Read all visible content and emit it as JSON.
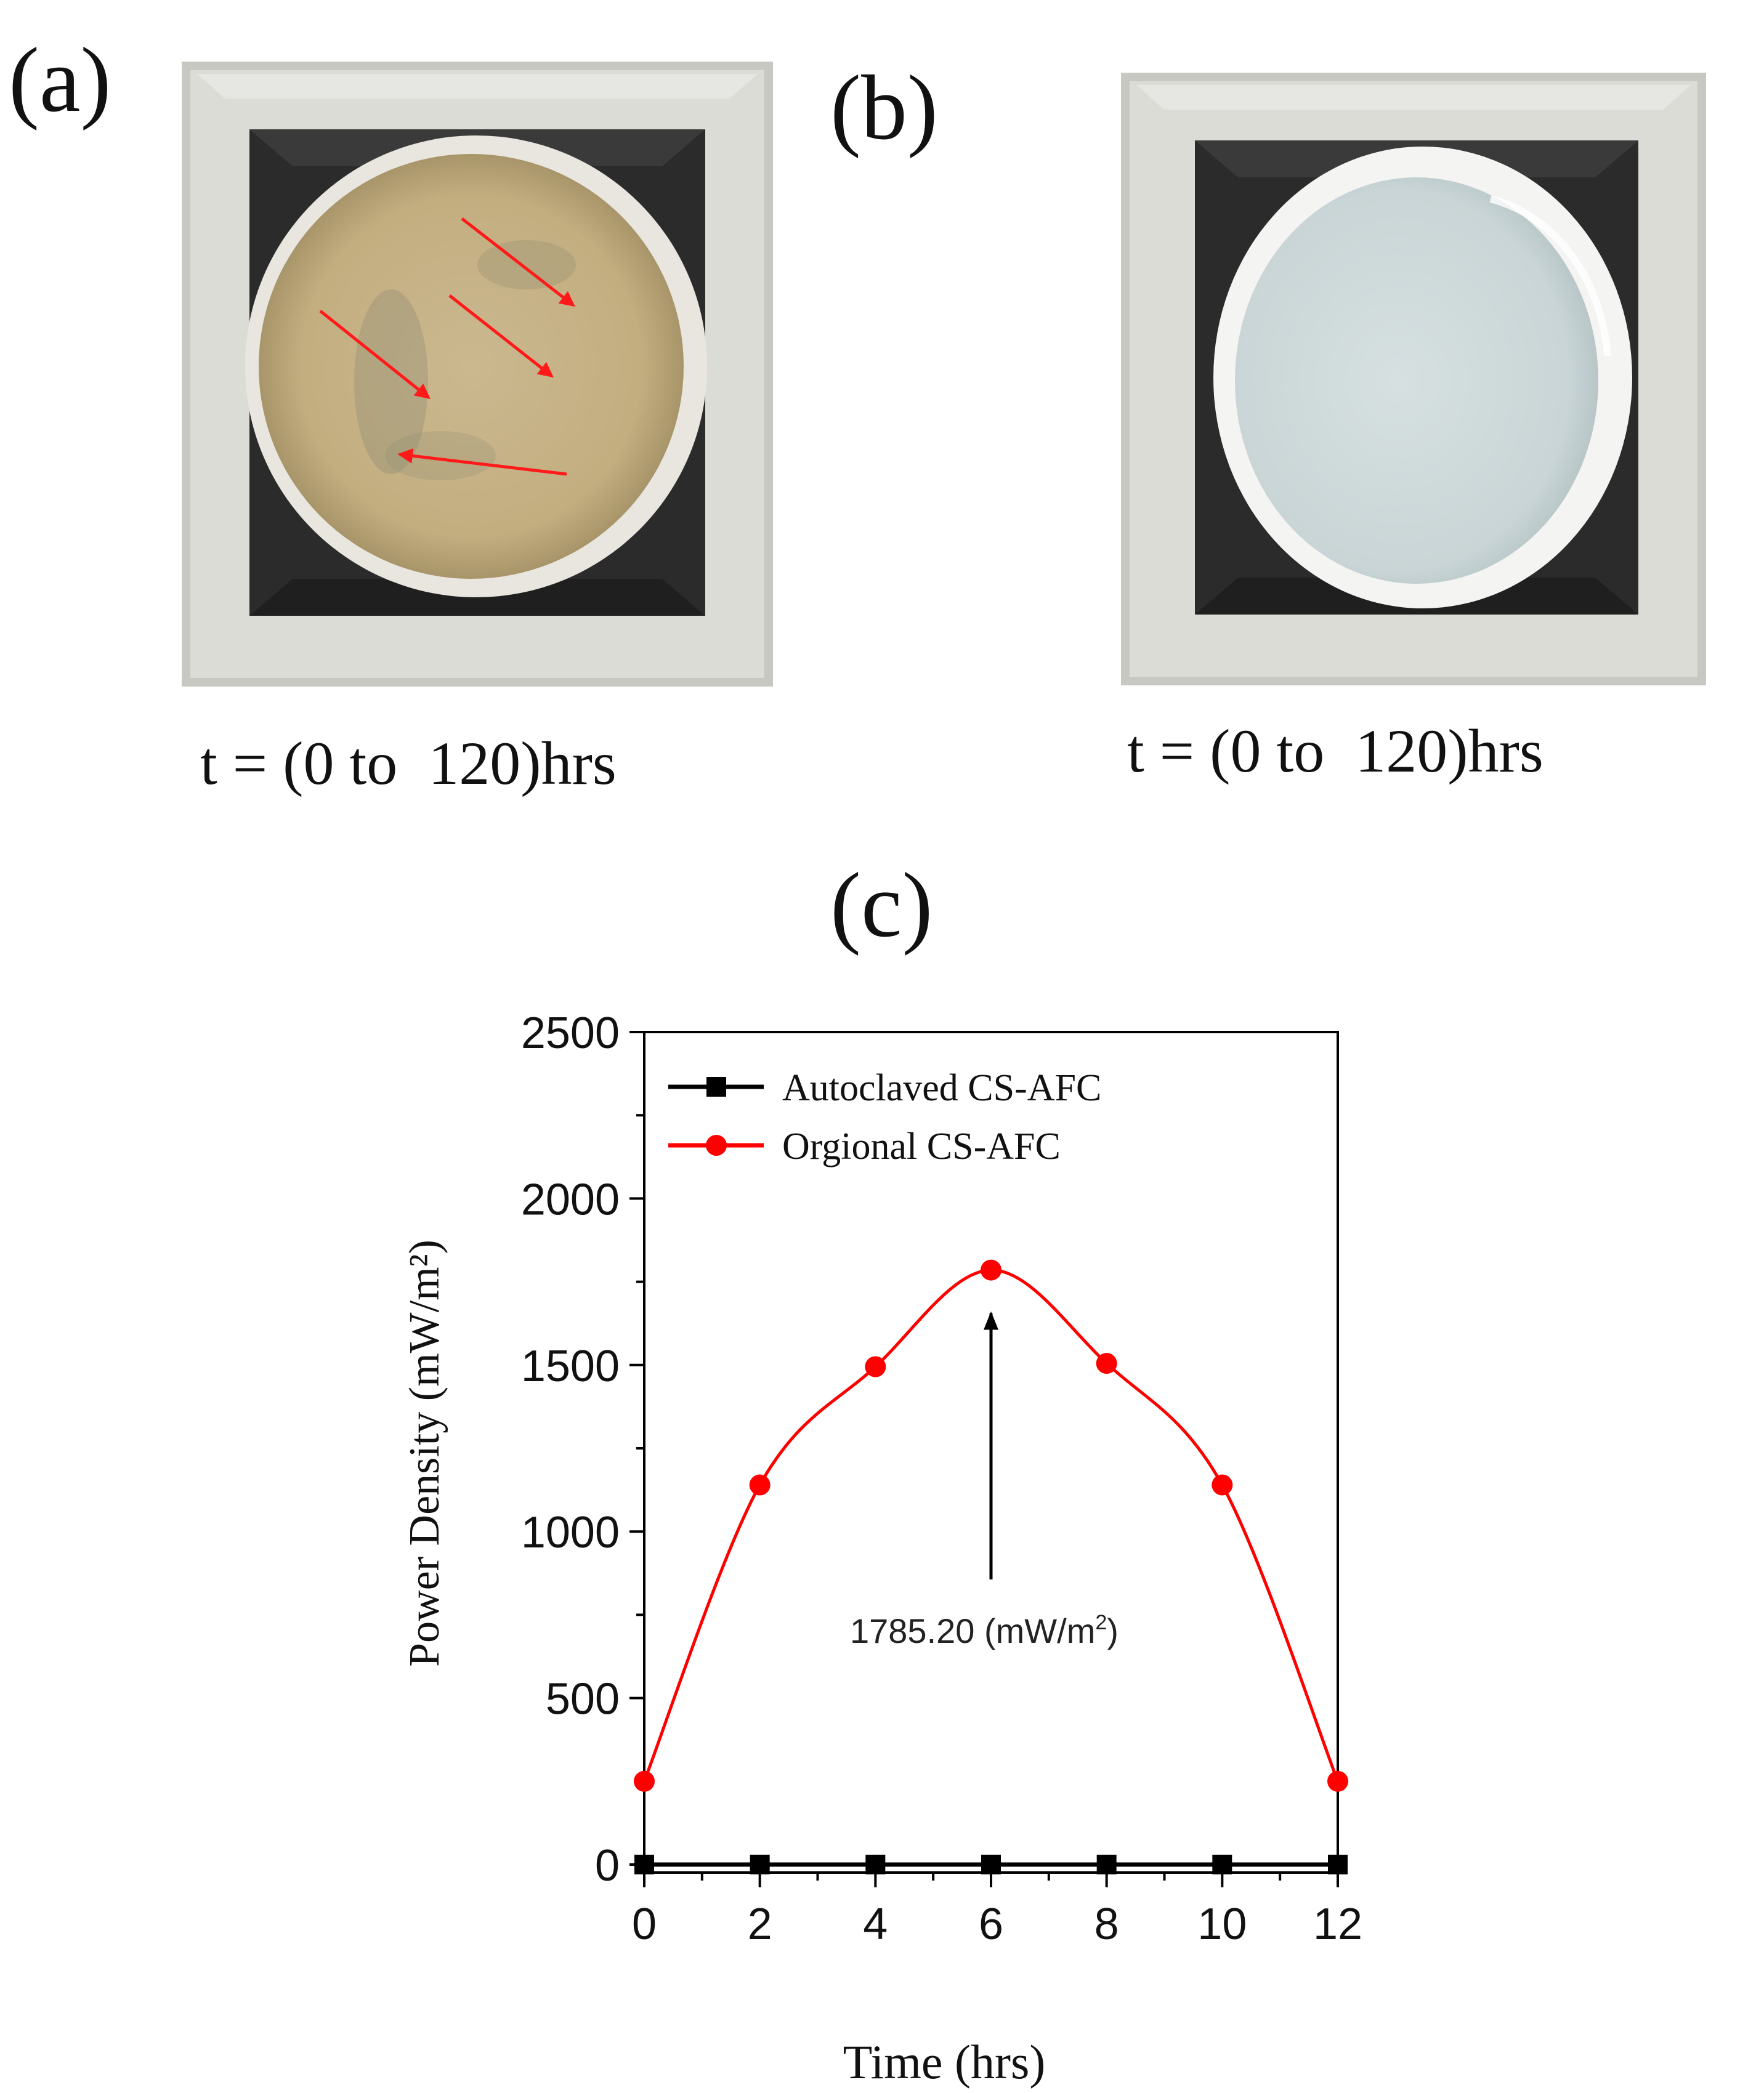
{
  "panels": {
    "a": {
      "label": "(a)",
      "caption": "t = (0 to  120)hrs"
    },
    "b": {
      "label": "(b)",
      "caption": "t = (0 to  120)hrs"
    },
    "c": {
      "label": "(c)"
    }
  },
  "colors": {
    "frame": "#d9d9d4",
    "mat": "#2a2a2a",
    "agar_contaminated": "#c9b58a",
    "agar_clear": "#cfdadb",
    "arrow_red": "#ff1a1a",
    "series_black": "#000000",
    "series_red": "#ff0000"
  },
  "chart_data": {
    "type": "line",
    "title": "(c)",
    "xlabel": "Time (hrs)",
    "ylabel": "Power Density (mW/m²)",
    "xlim": [
      0,
      12
    ],
    "ylim": [
      0,
      2500
    ],
    "x_ticks": [
      0,
      2,
      4,
      6,
      8,
      10,
      12
    ],
    "y_ticks": [
      0,
      500,
      1000,
      1500,
      2000,
      2500
    ],
    "x": [
      0,
      2,
      4,
      6,
      8,
      10,
      12
    ],
    "series": [
      {
        "name": "Autoclaved CS-AFC",
        "color": "#000000",
        "marker": "square",
        "values": [
          0,
          0,
          0,
          0,
          0,
          0,
          0
        ]
      },
      {
        "name": "Orgional CS-AFC",
        "color": "#ff0000",
        "marker": "circle",
        "values": [
          250,
          1140,
          1495,
          1785.2,
          1505,
          1140,
          250
        ]
      }
    ],
    "annotation": {
      "text": "1785.20 (mW/m",
      "sup": "2",
      "close": ")",
      "x": 6,
      "y": 1785.2
    },
    "legend_position": "top-left"
  }
}
